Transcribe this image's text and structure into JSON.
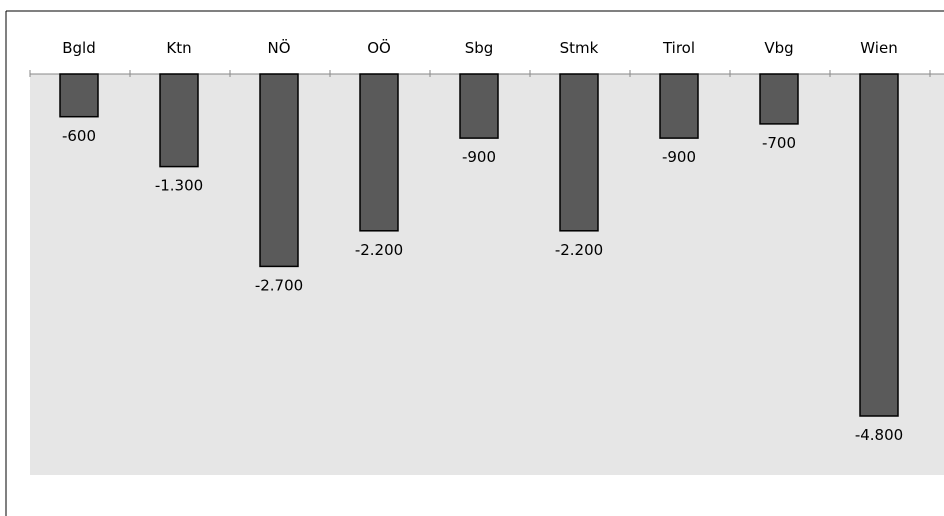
{
  "chart_data": {
    "type": "bar",
    "categories": [
      "Bgld",
      "Ktn",
      "NÖ",
      "OÖ",
      "Sbg",
      "Stmk",
      "Tirol",
      "Vbg",
      "Wien"
    ],
    "values": [
      -600,
      -1300,
      -2700,
      -2200,
      -900,
      -2200,
      -900,
      -700,
      -4800
    ],
    "value_labels": [
      "-600",
      "-1.300",
      "-2.700",
      "-2.200",
      "-900",
      "-2.200",
      "-900",
      "-700",
      "-4.800"
    ],
    "ylim": [
      -5600,
      0
    ],
    "colors": {
      "bar": "#5a5a5a",
      "plot_background": "#e6e6e6",
      "axis": "#888888"
    }
  }
}
